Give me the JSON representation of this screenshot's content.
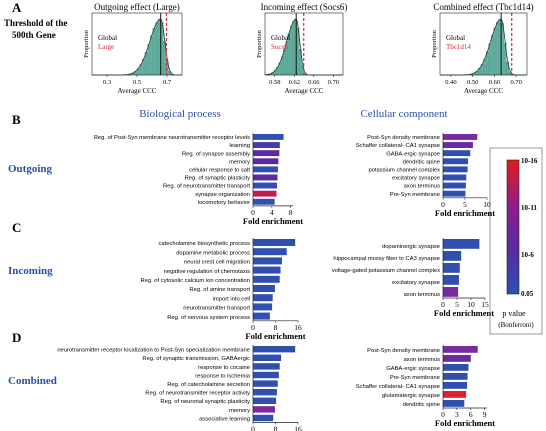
{
  "panel_letters": [
    "A",
    "B",
    "C",
    "D"
  ],
  "threshold_label": [
    "Threshold of the",
    "500th Gene"
  ],
  "column_titles": {
    "bio": "Biological process",
    "cell": "Cellular component"
  },
  "row_labels": {
    "B": "Outgoing",
    "C": "Incoming",
    "D": "Combined"
  },
  "legend": {
    "title": "p value",
    "subtitle": "(Bonferroni)",
    "ticks": [
      "10-16",
      "10-11",
      "10-6",
      "0.05"
    ],
    "colors": [
      "#e41a1c",
      "#8b1e8e",
      "#5b2aa0",
      "#2a4fb0"
    ]
  },
  "colors": {
    "bar_blue": "#3050b0",
    "purple": "#7a2aa0",
    "red": "#d8283a",
    "hist": "#5fb0a0",
    "heading_blue": "#2c4fa8"
  },
  "chart_data": [
    {
      "type": "histogram",
      "title": "Outgoing effect (Large)",
      "xlabel": "Average CCC",
      "ylabel": "Proportion",
      "xticks": [
        "0.3",
        "0.5",
        "0.7"
      ],
      "xlim": [
        0.2,
        0.75
      ],
      "mode": 0.62,
      "threshold": 0.655,
      "legend": [
        "Global",
        "Large"
      ]
    },
    {
      "type": "histogram",
      "title": "Incoming effect (Socs6)",
      "xlabel": "Average CCC",
      "ylabel": "Proportion",
      "xticks": [
        "0.58",
        "0.62",
        "0.66",
        "0.70"
      ],
      "xlim": [
        0.555,
        0.71
      ],
      "mode": 0.617,
      "threshold": 0.632,
      "legend": [
        "Global",
        "Socs6"
      ]
    },
    {
      "type": "histogram",
      "title": "Combined effect (Tbc1d14)",
      "xlabel": "Average CCC",
      "ylabel": "Proportion",
      "xticks": [
        "0.40",
        "0.50",
        "0.60",
        "0.70"
      ],
      "xlim": [
        0.35,
        0.72
      ],
      "mode": 0.61,
      "threshold": 0.655,
      "legend": [
        "Global",
        "Tbc1d14"
      ]
    },
    {
      "type": "bar",
      "orientation": "horizontal",
      "group": "outgoing-biological-process",
      "xlabel": "Fold enrichment",
      "xticks": [
        0,
        4,
        8
      ],
      "xlim": [
        0,
        8.5
      ],
      "categories": [
        "Reg. of Post-Syn membrane neurotransmitter receptor levels",
        "learning",
        "Reg. of synapse assembly",
        "memory",
        "cellular response to salt",
        "Reg. of synaptic plasticity",
        "Reg. of neurotransmitter transport",
        "synapse organization",
        "locomotory behavior"
      ],
      "values": [
        6.5,
        5.7,
        5.6,
        5.4,
        5.3,
        5.2,
        5.1,
        5.0,
        4.6
      ],
      "colors": [
        "#3050b0",
        "#4a3aa8",
        "#5b2aa0",
        "#5b2aa0",
        "#3050b0",
        "#5b2aa0",
        "#3050b0",
        "#c02050",
        "#3050b0"
      ]
    },
    {
      "type": "bar",
      "orientation": "horizontal",
      "group": "outgoing-cellular-component",
      "xlabel": "Fold enrichment",
      "xticks": [
        0,
        5,
        10
      ],
      "xlim": [
        0,
        10
      ],
      "categories": [
        "Post-Syn density membrane",
        "Schaffer collateral- CA1 synapse",
        "GABA-ergic synapse",
        "dendritic spine",
        "potassium channel complex",
        "excitatory synapse",
        "axon terminus",
        "Pre-Syn membrane"
      ],
      "values": [
        7.8,
        6.8,
        6.2,
        5.7,
        5.6,
        5.3,
        5.2,
        5.1
      ],
      "colors": [
        "#7a2aa0",
        "#6a2aa0",
        "#3050b0",
        "#3050b0",
        "#3050b0",
        "#3050b0",
        "#3050b0",
        "#3050b0"
      ]
    },
    {
      "type": "bar",
      "orientation": "horizontal",
      "group": "incoming-biological-process",
      "xlabel": "Fold enrichment",
      "xticks": [
        0,
        8,
        16
      ],
      "xlim": [
        0,
        16
      ],
      "categories": [
        "catecholamine biosynthetic process",
        "dopamine metabolic process",
        "neural crest cell migration",
        "negative regulation of chemotaxis",
        "Reg. of cytosolic calcium ion concentration",
        "Reg. of amine transport",
        "import into cell",
        "neurotransmitter transport",
        "Reg. of nervous system process"
      ],
      "values": [
        15.0,
        12.0,
        10.3,
        9.8,
        9.5,
        7.8,
        7.0,
        6.8,
        6.0
      ],
      "colors": [
        "#3050b0",
        "#3050b0",
        "#3050b0",
        "#3050b0",
        "#3050b0",
        "#3050b0",
        "#3050b0",
        "#3050b0",
        "#3050b0"
      ]
    },
    {
      "type": "bar",
      "orientation": "horizontal",
      "group": "incoming-cellular-component",
      "xlabel": "Fold enrichment",
      "xticks": [
        0,
        5,
        10,
        15
      ],
      "xlim": [
        0,
        15
      ],
      "categories": [
        "dopaminergic synapse",
        "hippocampal mossy fiber to CA3 synapse",
        "voltage-gated potassium channel complex",
        "excitatory synapse",
        "axon terminus"
      ],
      "values": [
        13.0,
        6.5,
        6.0,
        5.7,
        5.4
      ],
      "colors": [
        "#3050b0",
        "#3050b0",
        "#3050b0",
        "#3050b0",
        "#7a2aa0"
      ]
    },
    {
      "type": "bar",
      "orientation": "horizontal",
      "group": "combined-biological-process",
      "xlabel": "Fold enrichment",
      "xticks": [
        0,
        8,
        16
      ],
      "xlim": [
        0,
        16
      ],
      "categories": [
        "neurotransmitter receptor localization to Post-Syn specialization membrane",
        "Reg. of synaptic transmission, GABAergic",
        "response to cocaine",
        "response to ischemia",
        "Reg. of catecholamine secretion",
        "Reg. of neurotransmitter receptor activity",
        "Reg. of neuronal synaptic plasticity",
        "memory",
        "associative learning"
      ],
      "values": [
        15.0,
        10.0,
        9.5,
        9.2,
        8.8,
        8.5,
        8.2,
        7.8,
        7.2
      ],
      "colors": [
        "#3050b0",
        "#3050b0",
        "#3050b0",
        "#3050b0",
        "#3050b0",
        "#3050b0",
        "#3050b0",
        "#7a2aa0",
        "#3050b0"
      ]
    },
    {
      "type": "bar",
      "orientation": "horizontal",
      "group": "combined-cellular-component",
      "xlabel": "Fold enrichment",
      "xticks": [
        0,
        3,
        6,
        9
      ],
      "xlim": [
        0,
        9.5
      ],
      "categories": [
        "Post-Syn density membrane",
        "axon terminus",
        "GABA-ergic synapse",
        "Pre-Syn membrane",
        "Schaffer collateral- CA1 synapse",
        "glutamatergic synapse",
        "dendritic spine"
      ],
      "values": [
        7.5,
        6.0,
        5.5,
        5.3,
        5.2,
        5.0,
        4.6
      ],
      "colors": [
        "#7a2aa0",
        "#6a2aa0",
        "#3050b0",
        "#3050b0",
        "#3050b0",
        "#e0202a",
        "#3050b0"
      ]
    }
  ]
}
